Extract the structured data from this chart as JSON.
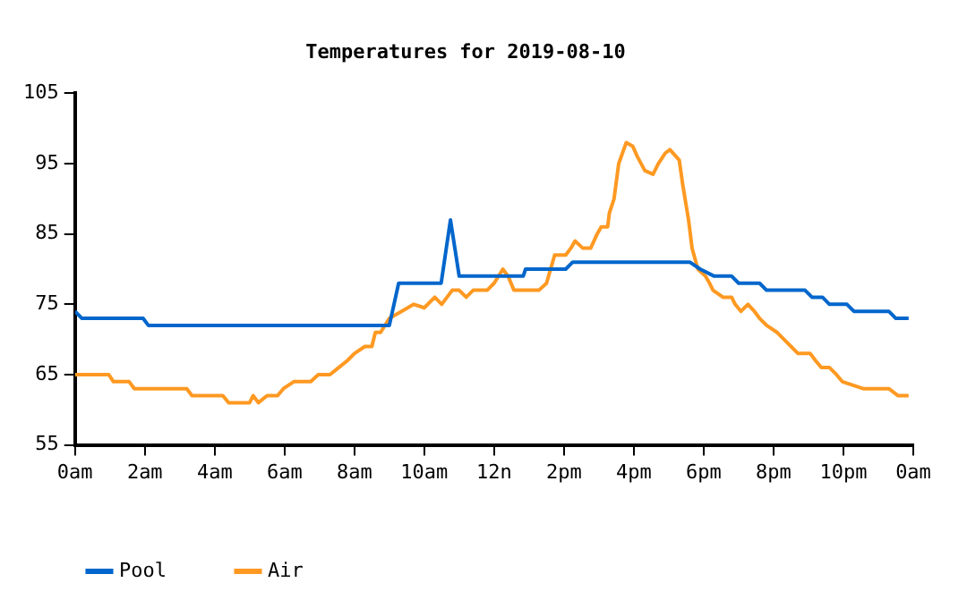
{
  "chart_data": {
    "type": "line",
    "title": "Temperatures for 2019-08-10",
    "xlim": [
      "2019-08-10T00:00",
      "2019-08-11T00:00"
    ],
    "xticks": [
      {
        "value": "2019-08-10T00:00",
        "label": "0am"
      },
      {
        "value": "2019-08-10T02:00",
        "label": "2am"
      },
      {
        "value": "2019-08-10T04:00",
        "label": "4am"
      },
      {
        "value": "2019-08-10T06:00",
        "label": "6am"
      },
      {
        "value": "2019-08-10T08:00",
        "label": "8am"
      },
      {
        "value": "2019-08-10T10:00",
        "label": "10am"
      },
      {
        "value": "2019-08-10T12:00",
        "label": "12n"
      },
      {
        "value": "2019-08-10T14:00",
        "label": "2pm"
      },
      {
        "value": "2019-08-10T16:00",
        "label": "4pm"
      },
      {
        "value": "2019-08-10T18:00",
        "label": "6pm"
      },
      {
        "value": "2019-08-10T20:00",
        "label": "8pm"
      },
      {
        "value": "2019-08-10T22:00",
        "label": "10pm"
      },
      {
        "value": "2019-08-11T00:00",
        "label": "0am"
      }
    ],
    "ylim": [
      55,
      105
    ],
    "yticks": [
      55,
      65,
      75,
      85,
      95,
      105
    ],
    "grid": false,
    "legend": "bottom left",
    "marker": "none",
    "line_style": "solid",
    "series": [
      {
        "name": "Pool",
        "color": "#0066cc",
        "x": [
          "2019-08-10T00:00",
          "2019-08-10T00:12",
          "2019-08-10T01:57",
          "2019-08-10T02:06",
          "2019-08-10T09:00",
          "2019-08-10T09:16",
          "2019-08-10T10:29",
          "2019-08-10T10:45",
          "2019-08-10T11:00",
          "2019-08-10T12:50",
          "2019-08-10T12:54",
          "2019-08-10T14:03",
          "2019-08-10T14:15",
          "2019-08-10T17:36",
          "2019-08-10T17:54",
          "2019-08-10T18:18",
          "2019-08-10T18:48",
          "2019-08-10T19:00",
          "2019-08-10T19:36",
          "2019-08-10T19:48",
          "2019-08-10T20:54",
          "2019-08-10T21:06",
          "2019-08-10T21:24",
          "2019-08-10T21:36",
          "2019-08-10T22:06",
          "2019-08-10T22:18",
          "2019-08-10T23:18",
          "2019-08-10T23:30",
          "2019-08-10T23:52"
        ],
        "values": [
          74,
          73,
          73,
          72,
          72,
          78,
          78,
          87,
          79,
          79,
          80,
          80,
          81,
          81,
          80,
          79,
          79,
          78,
          78,
          77,
          77,
          76,
          76,
          75,
          75,
          74,
          74,
          73,
          73
        ]
      },
      {
        "name": "Air",
        "color": "#ff9922",
        "x": [
          "2019-08-10T00:00",
          "2019-08-10T00:58",
          "2019-08-10T01:06",
          "2019-08-10T01:33",
          "2019-08-10T01:42",
          "2019-08-10T03:12",
          "2019-08-10T03:21",
          "2019-08-10T04:14",
          "2019-08-10T04:24",
          "2019-08-10T05:00",
          "2019-08-10T05:06",
          "2019-08-10T05:15",
          "2019-08-10T05:30",
          "2019-08-10T05:48",
          "2019-08-10T05:58",
          "2019-08-10T06:16",
          "2019-08-10T06:45",
          "2019-08-10T06:58",
          "2019-08-10T07:18",
          "2019-08-10T07:33",
          "2019-08-10T07:48",
          "2019-08-10T08:00",
          "2019-08-10T08:18",
          "2019-08-10T08:30",
          "2019-08-10T08:36",
          "2019-08-10T08:45",
          "2019-08-10T09:00",
          "2019-08-10T09:21",
          "2019-08-10T09:42",
          "2019-08-10T10:00",
          "2019-08-10T10:18",
          "2019-08-10T10:30",
          "2019-08-10T10:48",
          "2019-08-10T11:00",
          "2019-08-10T11:12",
          "2019-08-10T11:24",
          "2019-08-10T11:48",
          "2019-08-10T12:00",
          "2019-08-10T12:15",
          "2019-08-10T12:24",
          "2019-08-10T12:34",
          "2019-08-10T13:17",
          "2019-08-10T13:30",
          "2019-08-10T13:44",
          "2019-08-10T14:03",
          "2019-08-10T14:12",
          "2019-08-10T14:19",
          "2019-08-10T14:32",
          "2019-08-10T14:46",
          "2019-08-10T14:57",
          "2019-08-10T15:04",
          "2019-08-10T15:15",
          "2019-08-10T15:18",
          "2019-08-10T15:26",
          "2019-08-10T15:34",
          "2019-08-10T15:47",
          "2019-08-10T15:58",
          "2019-08-10T16:06",
          "2019-08-10T16:19",
          "2019-08-10T16:33",
          "2019-08-10T16:42",
          "2019-08-10T16:54",
          "2019-08-10T17:02",
          "2019-08-10T17:18",
          "2019-08-10T17:24",
          "2019-08-10T17:34",
          "2019-08-10T17:40",
          "2019-08-10T17:50",
          "2019-08-10T18:03",
          "2019-08-10T18:10",
          "2019-08-10T18:16",
          "2019-08-10T18:33",
          "2019-08-10T18:48",
          "2019-08-10T18:54",
          "2019-08-10T19:04",
          "2019-08-10T19:16",
          "2019-08-10T19:27",
          "2019-08-10T19:36",
          "2019-08-10T19:48",
          "2019-08-10T20:06",
          "2019-08-10T20:18",
          "2019-08-10T20:30",
          "2019-08-10T20:42",
          "2019-08-10T21:03",
          "2019-08-10T21:12",
          "2019-08-10T21:22",
          "2019-08-10T21:36",
          "2019-08-10T21:48",
          "2019-08-10T21:58",
          "2019-08-10T22:34",
          "2019-08-10T23:18",
          "2019-08-10T23:34",
          "2019-08-10T23:52"
        ],
        "values": [
          65,
          65,
          64,
          64,
          63,
          63,
          62,
          62,
          61,
          61,
          62,
          61,
          62,
          62,
          63,
          64,
          64,
          65,
          65,
          66,
          67,
          68,
          69,
          69,
          71,
          71,
          73,
          74,
          75,
          74.5,
          76,
          75,
          77,
          77,
          76,
          77,
          77,
          78,
          80,
          79,
          77,
          77,
          78,
          82,
          82,
          83,
          84,
          83,
          83,
          85,
          86,
          86,
          88,
          90,
          95,
          98,
          97.5,
          96,
          94,
          93.5,
          95,
          96.5,
          97,
          95.5,
          92,
          87,
          83,
          80,
          79,
          78,
          77,
          76,
          76,
          75,
          74,
          75,
          74,
          73,
          72,
          71,
          70,
          69,
          68,
          68,
          67,
          66,
          66,
          65,
          64,
          63,
          63,
          62,
          62
        ]
      }
    ]
  }
}
